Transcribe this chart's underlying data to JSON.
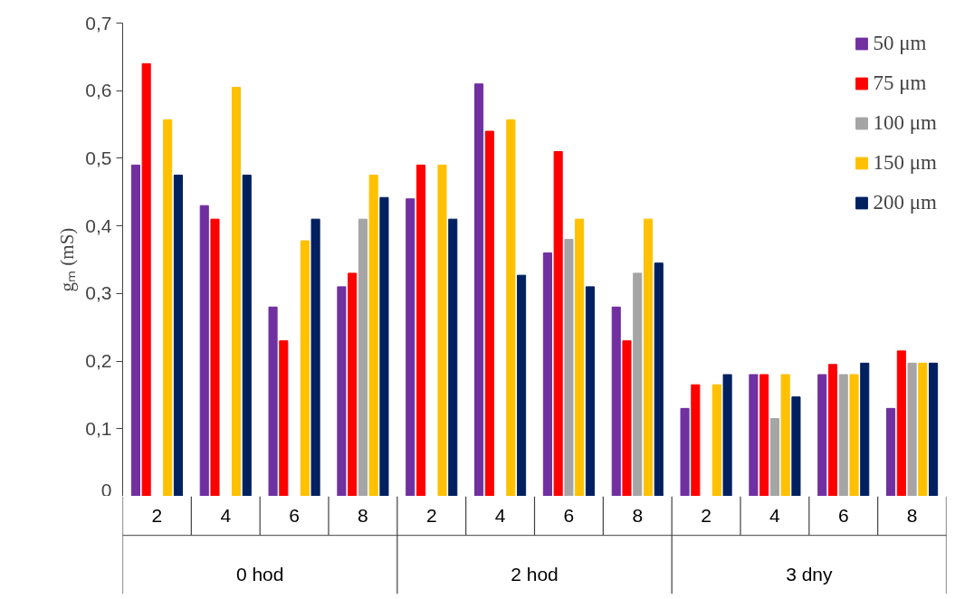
{
  "chart_data": {
    "type": "bar",
    "ylabel": "gₘ (mS)",
    "categories": [
      "2",
      "4",
      "6",
      "8",
      "2",
      "4",
      "6",
      "8",
      "2",
      "4",
      "6",
      "8"
    ],
    "annotations": [
      "0 hod",
      "2 hod",
      "3 dny"
    ],
    "series": [
      {
        "name": "50 μm",
        "color": "#7030a0",
        "values": [
          0.49,
          0.43,
          0.28,
          0.31,
          0.44,
          0.61,
          0.36,
          0.28,
          0.13,
          0.18,
          0.18,
          0.13
        ]
      },
      {
        "name": "75 μm",
        "color": "#ff0000",
        "values": [
          0.64,
          0.41,
          0.23,
          0.33,
          0.49,
          0.54,
          0.51,
          0.23,
          0.165,
          0.18,
          0.195,
          0.215
        ]
      },
      {
        "name": "100 μm",
        "color": "#a5a5a5",
        "values": [
          null,
          null,
          null,
          0.41,
          null,
          null,
          0.38,
          0.33,
          null,
          0.115,
          0.18,
          0.197
        ]
      },
      {
        "name": "150 μm",
        "color": "#ffc000",
        "values": [
          0.557,
          0.605,
          0.378,
          0.475,
          0.49,
          0.557,
          0.41,
          0.41,
          0.165,
          0.18,
          0.18,
          0.197
        ]
      },
      {
        "name": "200 μm",
        "color": "#002060",
        "values": [
          0.475,
          0.475,
          0.41,
          0.442,
          0.41,
          0.327,
          0.31,
          0.345,
          0.18,
          0.147,
          0.197,
          0.197
        ]
      }
    ],
    "ylim": [
      0,
      0.7
    ],
    "yticks": [
      0,
      {
        "value": 0.1,
        "label": "0,1"
      },
      {
        "value": 0.2,
        "label": "0,2"
      },
      {
        "value": 0.3,
        "label": "0,3"
      },
      {
        "value": 0.4,
        "label": "0,4"
      },
      {
        "value": 0.5,
        "label": "0,5"
      },
      {
        "value": 0.6,
        "label": "0,6"
      },
      {
        "value": 0.7,
        "label": "0,7"
      }
    ],
    "grid": false,
    "legend": "top right"
  }
}
